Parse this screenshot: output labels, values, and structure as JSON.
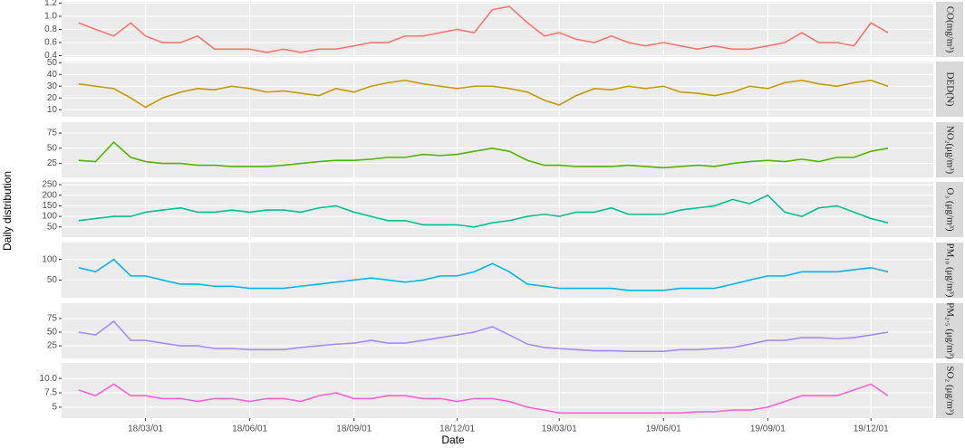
{
  "chart_data": {
    "type": "line",
    "xlabel": "Date",
    "ylabel": "Daily distribution",
    "xlim": [
      "17/12/17",
      "20/01/25"
    ],
    "xticks": [
      "18/03/01",
      "18/06/01",
      "18/09/01",
      "18/12/01",
      "19/03/01",
      "19/06/01",
      "19/09/01",
      "19/12/01"
    ],
    "grid": true,
    "x": [
      "18/01/01",
      "18/01/16",
      "18/02/01",
      "18/02/16",
      "18/03/01",
      "18/03/16",
      "18/04/01",
      "18/04/16",
      "18/05/01",
      "18/05/16",
      "18/06/01",
      "18/06/16",
      "18/07/01",
      "18/07/16",
      "18/08/01",
      "18/08/16",
      "18/09/01",
      "18/09/16",
      "18/10/01",
      "18/10/16",
      "18/11/01",
      "18/11/16",
      "18/12/01",
      "18/12/16",
      "19/01/01",
      "19/01/16",
      "19/02/01",
      "19/02/16",
      "19/03/01",
      "19/03/16",
      "19/04/01",
      "19/04/16",
      "19/05/01",
      "19/05/16",
      "19/06/01",
      "19/06/16",
      "19/07/01",
      "19/07/16",
      "19/08/01",
      "19/08/16",
      "19/09/01",
      "19/09/16",
      "19/10/01",
      "19/10/16",
      "19/11/01",
      "19/11/16",
      "19/12/01",
      "19/12/16"
    ],
    "series": [
      {
        "name": "CO(mg/m³)",
        "color": "#f8766d",
        "ylim": [
          0.38,
          1.22
        ],
        "yticks": [
          0.4,
          0.6,
          0.8,
          {
            "value": 1.0,
            "label": "1.0"
          },
          1.2
        ],
        "values": [
          0.9,
          0.8,
          0.7,
          0.9,
          0.7,
          0.6,
          0.6,
          0.7,
          0.5,
          0.5,
          0.5,
          0.45,
          0.5,
          0.45,
          0.5,
          0.5,
          0.55,
          0.6,
          0.6,
          0.7,
          0.7,
          0.75,
          0.8,
          0.75,
          1.1,
          1.15,
          0.9,
          0.7,
          0.75,
          0.65,
          0.6,
          0.7,
          0.6,
          0.55,
          0.6,
          0.55,
          0.5,
          0.55,
          0.5,
          0.5,
          0.55,
          0.6,
          0.75,
          0.6,
          0.6,
          0.55,
          0.9,
          0.75
        ]
      },
      {
        "name": "DED(N)",
        "color": "#c49a00",
        "ylim": [
          4,
          51
        ],
        "yticks": [
          10,
          20,
          30,
          40,
          50
        ],
        "values": [
          32,
          30,
          28,
          20,
          12,
          20,
          25,
          28,
          27,
          30,
          28,
          25,
          26,
          24,
          22,
          28,
          25,
          30,
          33,
          35,
          32,
          30,
          28,
          30,
          30,
          28,
          25,
          18,
          14,
          22,
          28,
          27,
          30,
          28,
          30,
          25,
          24,
          22,
          25,
          30,
          28,
          33,
          35,
          32,
          30,
          33,
          35,
          30
        ]
      },
      {
        "name": "NO₂(μg/m³)",
        "color": "#53b400",
        "ylim": [
          2,
          93
        ],
        "yticks": [
          25,
          50,
          75
        ],
        "values": [
          30,
          28,
          60,
          35,
          28,
          25,
          25,
          22,
          22,
          20,
          20,
          20,
          22,
          25,
          28,
          30,
          30,
          32,
          35,
          35,
          40,
          38,
          40,
          45,
          50,
          45,
          30,
          22,
          22,
          20,
          20,
          20,
          22,
          20,
          18,
          20,
          22,
          20,
          25,
          28,
          30,
          28,
          32,
          28,
          35,
          35,
          45,
          50
        ]
      },
      {
        "name": "O₃ (μg/m³)",
        "color": "#00c094",
        "ylim": [
          2,
          263
        ],
        "yticks": [
          50,
          100,
          150,
          200,
          250
        ],
        "values": [
          80,
          90,
          100,
          100,
          120,
          130,
          140,
          120,
          120,
          130,
          120,
          130,
          130,
          120,
          140,
          150,
          120,
          100,
          80,
          80,
          60,
          60,
          60,
          50,
          70,
          80,
          100,
          110,
          100,
          120,
          120,
          140,
          110,
          110,
          110,
          130,
          140,
          150,
          180,
          160,
          200,
          120,
          100,
          140,
          150,
          120,
          90,
          70
        ]
      },
      {
        "name": "PM₁₀ (μg/m³)",
        "color": "#00b6eb",
        "ylim": [
          7,
          141
        ],
        "yticks": [
          50,
          100
        ],
        "values": [
          80,
          70,
          100,
          60,
          60,
          50,
          40,
          40,
          35,
          35,
          30,
          30,
          30,
          35,
          40,
          45,
          50,
          55,
          50,
          45,
          50,
          60,
          60,
          70,
          90,
          70,
          40,
          35,
          30,
          30,
          30,
          30,
          25,
          25,
          25,
          30,
          30,
          30,
          40,
          50,
          60,
          60,
          70,
          70,
          70,
          75,
          80,
          70
        ]
      },
      {
        "name": "PM₂.₅ (μg/m³)",
        "color": "#a58aff",
        "ylim": [
          2,
          103
        ],
        "yticks": [
          25,
          50,
          75
        ],
        "values": [
          50,
          45,
          70,
          35,
          35,
          30,
          25,
          25,
          20,
          20,
          18,
          18,
          18,
          22,
          25,
          28,
          30,
          35,
          30,
          30,
          35,
          40,
          45,
          50,
          60,
          45,
          28,
          22,
          20,
          18,
          16,
          16,
          15,
          15,
          15,
          18,
          18,
          20,
          22,
          28,
          35,
          35,
          40,
          40,
          38,
          40,
          45,
          50
        ]
      },
      {
        "name": "SO₂ (μg/m³)",
        "color": "#fb61d7",
        "ylim": [
          3.1,
          12.7
        ],
        "yticks": [
          5.0,
          7.5,
          {
            "value": 10,
            "label": "10.0"
          }
        ],
        "values": [
          8,
          7,
          9,
          7,
          7,
          6.5,
          6.5,
          6,
          6.5,
          6.5,
          6,
          6.5,
          6.5,
          6,
          7,
          7.5,
          6.5,
          6.5,
          7,
          7,
          6.5,
          6.5,
          6,
          6.5,
          6.5,
          6,
          5,
          4.5,
          4,
          4,
          4,
          4,
          4,
          4,
          4,
          4,
          4.2,
          4.2,
          4.5,
          4.5,
          5,
          6,
          7,
          7,
          7,
          8,
          9,
          7
        ]
      }
    ]
  }
}
